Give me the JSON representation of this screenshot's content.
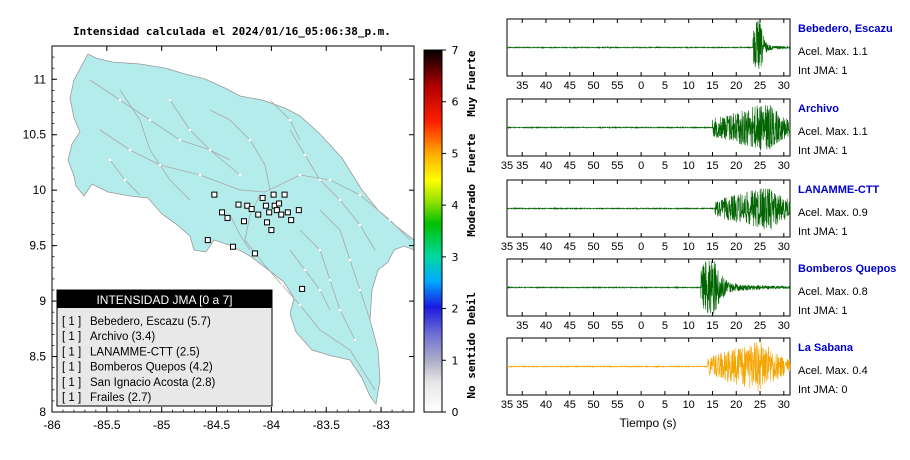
{
  "chart_data": [
    {
      "type": "map",
      "title": "Intensidad calculada el 2024/01/16_05:06:38_p.m.",
      "xlim": [
        -86,
        -82.7
      ],
      "ylim": [
        8,
        11.3
      ],
      "x_ticks": [
        -86,
        -85.5,
        -85,
        -84.5,
        -84,
        -83.5,
        -83
      ],
      "x_tick_labels": [
        "-86",
        "-85.5",
        "-85",
        "-84.5",
        "-84",
        "-83.5",
        "-83"
      ],
      "y_ticks": [
        8,
        8.5,
        9,
        9.5,
        10,
        10.5,
        11
      ],
      "y_tick_labels": [
        "8",
        "8.5",
        "9",
        "9.5",
        "10",
        "10.5",
        "11"
      ],
      "land_color": "#b4ecec",
      "station_markers": [
        {
          "lon": -84.52,
          "lat": 9.96
        },
        {
          "lon": -84.45,
          "lat": 9.8
        },
        {
          "lon": -84.3,
          "lat": 9.87
        },
        {
          "lon": -84.22,
          "lat": 9.86
        },
        {
          "lon": -84.18,
          "lat": 9.83
        },
        {
          "lon": -84.12,
          "lat": 9.78
        },
        {
          "lon": -84.08,
          "lat": 9.93
        },
        {
          "lon": -84.05,
          "lat": 9.86
        },
        {
          "lon": -84.02,
          "lat": 9.8
        },
        {
          "lon": -83.98,
          "lat": 9.96
        },
        {
          "lon": -83.97,
          "lat": 9.86
        },
        {
          "lon": -83.95,
          "lat": 9.82
        },
        {
          "lon": -83.93,
          "lat": 9.88
        },
        {
          "lon": -83.91,
          "lat": 9.78
        },
        {
          "lon": -83.88,
          "lat": 9.96
        },
        {
          "lon": -83.85,
          "lat": 9.8
        },
        {
          "lon": -83.82,
          "lat": 9.73
        },
        {
          "lon": -84.0,
          "lat": 9.64
        },
        {
          "lon": -84.35,
          "lat": 9.49
        },
        {
          "lon": -84.58,
          "lat": 9.55
        },
        {
          "lon": -84.15,
          "lat": 9.43
        },
        {
          "lon": -83.72,
          "lat": 9.11
        },
        {
          "lon": -84.04,
          "lat": 9.71
        },
        {
          "lon": -84.25,
          "lat": 9.72
        },
        {
          "lon": -84.4,
          "lat": 9.75
        },
        {
          "lon": -83.75,
          "lat": 9.82
        }
      ],
      "legend": {
        "title": "INTENSIDAD JMA [0 a 7]",
        "items": [
          {
            "count": "[ 1 ]",
            "label": "Bebedero, Escazu (5.7)"
          },
          {
            "count": "[ 1 ]",
            "label": "Archivo (3.4)"
          },
          {
            "count": "[ 1 ]",
            "label": "LANAMME-CTT (2.5)"
          },
          {
            "count": "[ 1 ]",
            "label": "Bomberos Quepos (4.2)"
          },
          {
            "count": "[ 1 ]",
            "label": "San Ignacio Acosta (2.8)"
          },
          {
            "count": "[ 1 ]",
            "label": "Frailes (2.7)"
          }
        ]
      },
      "colorbar": {
        "range": [
          0,
          7
        ],
        "ticks": [
          "0",
          "1",
          "2",
          "3",
          "4",
          "5",
          "6",
          "7"
        ],
        "categories": [
          "No sentido",
          "Debil",
          "Moderado",
          "Fuerte",
          "Muy Fuerte"
        ]
      }
    },
    {
      "type": "line",
      "xlabel": "Tiempo (s)",
      "x_ticks": [
        35,
        40,
        45,
        50,
        55,
        0,
        5,
        10,
        15,
        20,
        25,
        30
      ],
      "series": [
        {
          "name": "Bebedero, Escazu",
          "acel": "Acel. Max. 1.1",
          "int": "Int JMA: 1",
          "color": "#006400",
          "onset": 23.5,
          "peak": 1.0,
          "decay": 3.0
        },
        {
          "name": "Archivo",
          "acel": "Acel. Max. 1.1",
          "int": "Int JMA: 1",
          "color": "#006400",
          "onset": 15,
          "peak": 0.85,
          "decay": 16
        },
        {
          "name": "LANAMME-CTT",
          "acel": "Acel. Max. 0.9",
          "int": "Int JMA: 1",
          "color": "#006400",
          "onset": 15.5,
          "peak": 0.75,
          "decay": 16
        },
        {
          "name": "Bomberos Quepos",
          "acel": "Acel. Max. 0.8",
          "int": "Int JMA: 1",
          "color": "#006400",
          "onset": 12.5,
          "peak": 0.95,
          "decay": 5
        },
        {
          "name": "La Sabana",
          "acel": "Acel. Max. 0.4",
          "int": "Int JMA: 0",
          "color": "#f5a500",
          "onset": 14,
          "peak": 0.9,
          "decay": 20
        }
      ]
    }
  ],
  "colors": {
    "station_name": "#0000cc",
    "seismo_green": "#006400",
    "seismo_orange": "#f5a500",
    "legend_header": "#000000",
    "legend_bg": "#e8e8e8"
  }
}
